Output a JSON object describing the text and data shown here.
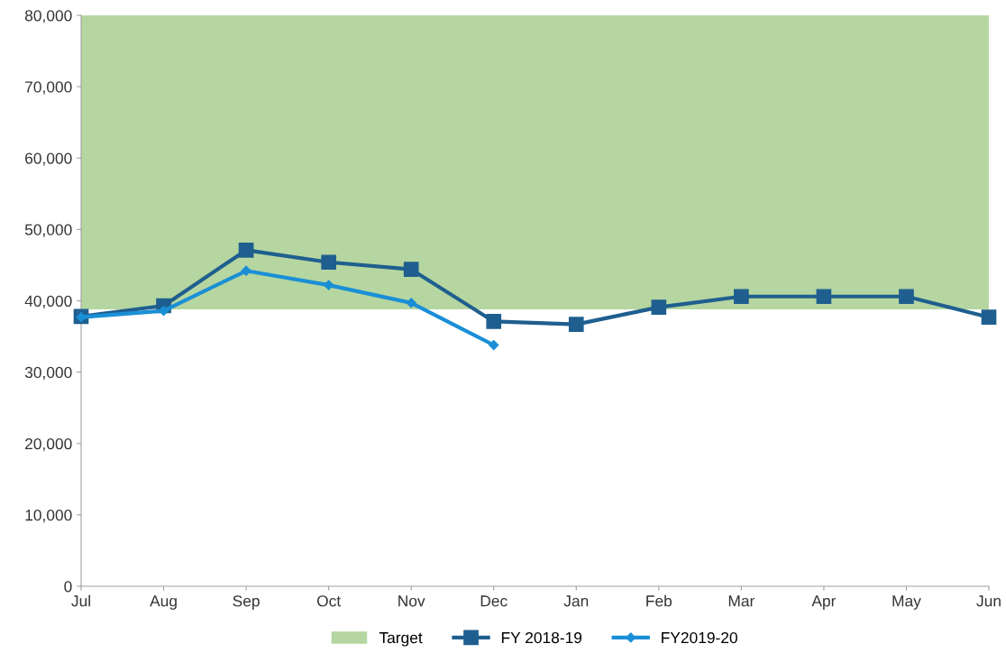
{
  "chart_data": {
    "type": "line",
    "categories": [
      "Jul",
      "Aug",
      "Sep",
      "Oct",
      "Nov",
      "Dec",
      "Jan",
      "Feb",
      "Mar",
      "Apr",
      "May",
      "Jun"
    ],
    "series": [
      {
        "name": "FY 2018-19",
        "color": "#1f5f8f",
        "marker": "square",
        "values": [
          37800,
          39300,
          47100,
          45400,
          44400,
          37100,
          36700,
          39100,
          40600,
          40600,
          40600,
          37700
        ]
      },
      {
        "name": "FY2019-20",
        "color": "#1a8fd6",
        "marker": "diamond",
        "values": [
          37700,
          38600,
          44200,
          42200,
          39700,
          33800,
          null,
          null,
          null,
          null,
          null,
          null
        ]
      }
    ],
    "bands": [
      {
        "axis": "y",
        "from": 38800,
        "to": 80000,
        "label": "Target",
        "color": "#b5d6a0"
      }
    ],
    "ylim": [
      0,
      80000
    ],
    "yticks": [
      {
        "value": 0,
        "label": "0"
      },
      {
        "value": 10000,
        "label": "10,000"
      },
      {
        "value": 20000,
        "label": "20,000"
      },
      {
        "value": 30000,
        "label": "30,000"
      },
      {
        "value": 40000,
        "label": "40,000"
      },
      {
        "value": 50000,
        "label": "50,000"
      },
      {
        "value": 60000,
        "label": "60,000"
      },
      {
        "value": 70000,
        "label": "70,000"
      },
      {
        "value": 80000,
        "label": "80,000"
      }
    ],
    "grid": false,
    "legend": "bottom",
    "line_style": "solid"
  }
}
